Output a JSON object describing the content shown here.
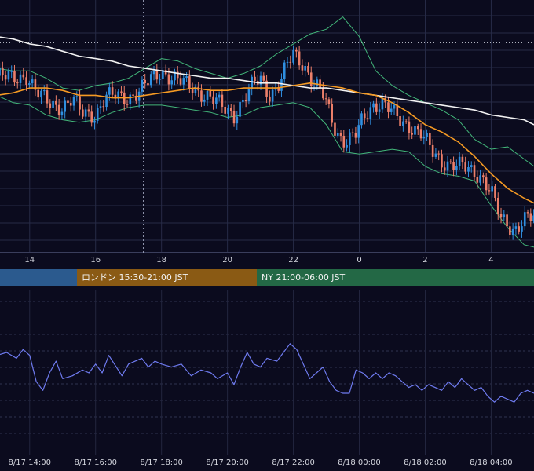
{
  "chart_data": [
    {
      "type": "candlestick",
      "title": "",
      "x_tick_labels": [
        "14",
        "16",
        "18",
        "20",
        "22",
        "0",
        "2",
        "4"
      ],
      "x_tick_hours": [
        14,
        16,
        18,
        20,
        22,
        24,
        26,
        28
      ],
      "x_range_hours": [
        13.1,
        29.3
      ],
      "y_range": [
        0,
        100
      ],
      "grid": true,
      "price_line_level": 84.5,
      "vertical_marker_hour": 17.45,
      "colors": {
        "up": "#2f8fe0",
        "down": "#ec7f6a",
        "ma_orange": "#f59a23",
        "ma_white": "#f2f2f2",
        "bands": "#43b77a",
        "background": "#0b0b1e",
        "grid": "#272b47"
      },
      "series": [
        {
          "type": "ohlc",
          "close_path": [
            [
              13.0,
              71
            ],
            [
              13.5,
              70
            ],
            [
              13.9,
              71
            ],
            [
              14.2,
              64
            ],
            [
              14.6,
              60
            ],
            [
              15.0,
              58
            ],
            [
              15.3,
              61
            ],
            [
              15.6,
              56
            ],
            [
              16.0,
              55
            ],
            [
              16.3,
              62
            ],
            [
              16.6,
              63
            ],
            [
              17.0,
              62
            ],
            [
              17.3,
              64
            ],
            [
              17.7,
              70
            ],
            [
              18.0,
              73
            ],
            [
              18.3,
              70
            ],
            [
              18.7,
              68
            ],
            [
              19.0,
              66
            ],
            [
              19.3,
              63
            ],
            [
              19.7,
              60
            ],
            [
              20.0,
              57
            ],
            [
              20.2,
              55
            ],
            [
              20.5,
              61
            ],
            [
              20.8,
              68
            ],
            [
              21.0,
              70
            ],
            [
              21.3,
              63
            ],
            [
              21.6,
              68
            ],
            [
              21.8,
              75
            ],
            [
              22.0,
              80
            ],
            [
              22.3,
              76
            ],
            [
              22.6,
              68
            ],
            [
              22.9,
              63
            ],
            [
              23.1,
              56
            ],
            [
              23.3,
              48
            ],
            [
              23.6,
              44
            ],
            [
              23.9,
              47
            ],
            [
              24.1,
              53
            ],
            [
              24.4,
              59
            ],
            [
              24.7,
              60
            ],
            [
              25.0,
              56
            ],
            [
              25.3,
              52
            ],
            [
              25.6,
              50
            ],
            [
              25.9,
              47
            ],
            [
              26.2,
              40
            ],
            [
              26.5,
              36
            ],
            [
              26.8,
              35
            ],
            [
              27.1,
              34
            ],
            [
              27.4,
              32
            ],
            [
              27.7,
              30
            ],
            [
              28.0,
              24
            ],
            [
              28.3,
              12
            ],
            [
              28.7,
              8
            ],
            [
              29.0,
              13
            ],
            [
              29.3,
              13
            ]
          ]
        },
        {
          "type": "line",
          "name": "",
          "color": "orange",
          "values": [
            [
              13.0,
              63
            ],
            [
              13.5,
              64
            ],
            [
              14.0,
              66
            ],
            [
              14.5,
              66
            ],
            [
              15.0,
              65
            ],
            [
              15.5,
              63
            ],
            [
              16.0,
              63
            ],
            [
              16.5,
              62
            ],
            [
              17.0,
              62
            ],
            [
              17.5,
              63
            ],
            [
              18.0,
              64
            ],
            [
              18.5,
              65
            ],
            [
              19.0,
              66
            ],
            [
              19.5,
              65
            ],
            [
              20.0,
              65
            ],
            [
              20.5,
              66
            ],
            [
              21.0,
              66
            ],
            [
              21.5,
              66
            ],
            [
              22.0,
              67
            ],
            [
              22.5,
              68
            ],
            [
              23.0,
              67
            ],
            [
              23.5,
              66
            ],
            [
              24.0,
              64
            ],
            [
              24.5,
              63
            ],
            [
              25.0,
              60
            ],
            [
              25.5,
              56
            ],
            [
              26.0,
              51
            ],
            [
              26.5,
              48
            ],
            [
              27.0,
              44
            ],
            [
              27.5,
              38
            ],
            [
              28.0,
              31
            ],
            [
              28.5,
              25
            ],
            [
              29.0,
              21
            ],
            [
              29.3,
              19
            ]
          ]
        },
        {
          "type": "line",
          "name": "",
          "color": "white",
          "values": [
            [
              13.0,
              87
            ],
            [
              13.5,
              86
            ],
            [
              14.0,
              84
            ],
            [
              14.5,
              83
            ],
            [
              15.0,
              81
            ],
            [
              15.5,
              79
            ],
            [
              16.0,
              78
            ],
            [
              16.5,
              77
            ],
            [
              17.0,
              75
            ],
            [
              17.5,
              74
            ],
            [
              18.0,
              73
            ],
            [
              18.5,
              72
            ],
            [
              19.0,
              71
            ],
            [
              19.5,
              70
            ],
            [
              20.0,
              70
            ],
            [
              20.5,
              69
            ],
            [
              21.0,
              68
            ],
            [
              21.5,
              68
            ],
            [
              22.0,
              67
            ],
            [
              22.5,
              66
            ],
            [
              23.0,
              66
            ],
            [
              23.5,
              65
            ],
            [
              24.0,
              64
            ],
            [
              24.5,
              63
            ],
            [
              25.0,
              62
            ],
            [
              25.5,
              61
            ],
            [
              26.0,
              60
            ],
            [
              26.5,
              59
            ],
            [
              27.0,
              58
            ],
            [
              27.5,
              57
            ],
            [
              28.0,
              55
            ],
            [
              28.5,
              54
            ],
            [
              29.0,
              53
            ],
            [
              29.3,
              51
            ]
          ]
        },
        {
          "type": "line",
          "name": "",
          "color": "band-upper",
          "values": [
            [
              13.0,
              74
            ],
            [
              13.5,
              73
            ],
            [
              14.0,
              73
            ],
            [
              14.5,
              70
            ],
            [
              15.0,
              66
            ],
            [
              15.5,
              65
            ],
            [
              16.0,
              67
            ],
            [
              16.5,
              68
            ],
            [
              17.0,
              70
            ],
            [
              17.5,
              74
            ],
            [
              18.0,
              78
            ],
            [
              18.5,
              77
            ],
            [
              19.0,
              74
            ],
            [
              19.5,
              72
            ],
            [
              20.0,
              70
            ],
            [
              20.5,
              72
            ],
            [
              21.0,
              75
            ],
            [
              21.5,
              80
            ],
            [
              22.0,
              84
            ],
            [
              22.5,
              88
            ],
            [
              23.0,
              90
            ],
            [
              23.5,
              95
            ],
            [
              24.0,
              87
            ],
            [
              24.5,
              73
            ],
            [
              25.0,
              67
            ],
            [
              25.5,
              63
            ],
            [
              26.0,
              60
            ],
            [
              26.5,
              57
            ],
            [
              27.0,
              53
            ],
            [
              27.5,
              45
            ],
            [
              28.0,
              41
            ],
            [
              28.5,
              42
            ],
            [
              29.0,
              37
            ],
            [
              29.3,
              34
            ]
          ]
        },
        {
          "type": "line",
          "name": "",
          "color": "band-lower",
          "values": [
            [
              13.0,
              63
            ],
            [
              13.5,
              60
            ],
            [
              14.0,
              59
            ],
            [
              14.5,
              55
            ],
            [
              15.0,
              53
            ],
            [
              15.5,
              52
            ],
            [
              16.0,
              53
            ],
            [
              16.5,
              56
            ],
            [
              17.0,
              58
            ],
            [
              17.5,
              59
            ],
            [
              18.0,
              59
            ],
            [
              18.5,
              58
            ],
            [
              19.0,
              57
            ],
            [
              19.5,
              56
            ],
            [
              20.0,
              54
            ],
            [
              20.5,
              55
            ],
            [
              21.0,
              58
            ],
            [
              21.5,
              59
            ],
            [
              22.0,
              60
            ],
            [
              22.5,
              58
            ],
            [
              23.0,
              51
            ],
            [
              23.5,
              40
            ],
            [
              24.0,
              39
            ],
            [
              24.5,
              40
            ],
            [
              25.0,
              41
            ],
            [
              25.5,
              40
            ],
            [
              26.0,
              34
            ],
            [
              26.5,
              31
            ],
            [
              27.0,
              30
            ],
            [
              27.5,
              28
            ],
            [
              28.0,
              18
            ],
            [
              28.5,
              9
            ],
            [
              29.0,
              2
            ],
            [
              29.3,
              1
            ]
          ]
        }
      ]
    },
    {
      "type": "line",
      "title": "",
      "x_tick_labels": [
        "8/17 14:00",
        "8/17 16:00",
        "8/17 18:00",
        "8/17 20:00",
        "8/17 22:00",
        "8/18 00:00",
        "8/18 02:00",
        "8/18 04:00"
      ],
      "x_tick_hours": [
        14,
        16,
        18,
        20,
        22,
        24,
        26,
        28
      ],
      "x_range_hours": [
        13.1,
        29.3
      ],
      "y_range": [
        0,
        100
      ],
      "grid": true,
      "series": [
        {
          "name": "",
          "color": "#6f7bf0",
          "values": [
            [
              13.0,
              62
            ],
            [
              13.3,
              64
            ],
            [
              13.6,
              60
            ],
            [
              13.8,
              66
            ],
            [
              14.0,
              62
            ],
            [
              14.2,
              44
            ],
            [
              14.4,
              38
            ],
            [
              14.6,
              50
            ],
            [
              14.8,
              58
            ],
            [
              15.0,
              46
            ],
            [
              15.3,
              48
            ],
            [
              15.6,
              52
            ],
            [
              15.8,
              50
            ],
            [
              16.0,
              56
            ],
            [
              16.2,
              50
            ],
            [
              16.4,
              62
            ],
            [
              16.6,
              55
            ],
            [
              16.8,
              48
            ],
            [
              17.0,
              56
            ],
            [
              17.2,
              58
            ],
            [
              17.4,
              60
            ],
            [
              17.6,
              54
            ],
            [
              17.8,
              58
            ],
            [
              18.0,
              56
            ],
            [
              18.3,
              54
            ],
            [
              18.6,
              56
            ],
            [
              18.9,
              48
            ],
            [
              19.2,
              52
            ],
            [
              19.5,
              50
            ],
            [
              19.7,
              46
            ],
            [
              20.0,
              50
            ],
            [
              20.2,
              42
            ],
            [
              20.4,
              54
            ],
            [
              20.6,
              64
            ],
            [
              20.8,
              56
            ],
            [
              21.0,
              54
            ],
            [
              21.2,
              60
            ],
            [
              21.5,
              58
            ],
            [
              21.7,
              64
            ],
            [
              21.9,
              70
            ],
            [
              22.1,
              66
            ],
            [
              22.3,
              56
            ],
            [
              22.5,
              46
            ],
            [
              22.7,
              50
            ],
            [
              22.9,
              54
            ],
            [
              23.1,
              44
            ],
            [
              23.3,
              38
            ],
            [
              23.5,
              36
            ],
            [
              23.7,
              36
            ],
            [
              23.9,
              52
            ],
            [
              24.1,
              50
            ],
            [
              24.3,
              46
            ],
            [
              24.5,
              50
            ],
            [
              24.7,
              46
            ],
            [
              24.9,
              50
            ],
            [
              25.1,
              48
            ],
            [
              25.3,
              44
            ],
            [
              25.5,
              40
            ],
            [
              25.7,
              42
            ],
            [
              25.9,
              38
            ],
            [
              26.1,
              42
            ],
            [
              26.3,
              40
            ],
            [
              26.5,
              38
            ],
            [
              26.7,
              44
            ],
            [
              26.9,
              40
            ],
            [
              27.1,
              46
            ],
            [
              27.3,
              42
            ],
            [
              27.5,
              38
            ],
            [
              27.7,
              40
            ],
            [
              27.9,
              34
            ],
            [
              28.1,
              30
            ],
            [
              28.3,
              34
            ],
            [
              28.5,
              32
            ],
            [
              28.7,
              30
            ],
            [
              28.9,
              36
            ],
            [
              29.1,
              38
            ],
            [
              29.3,
              36
            ]
          ]
        }
      ]
    }
  ],
  "sessions": {
    "tokyo": "",
    "london": "ロンドン 15:30-21:00 JST",
    "ny": "NY 21:00-06:00 JST"
  }
}
